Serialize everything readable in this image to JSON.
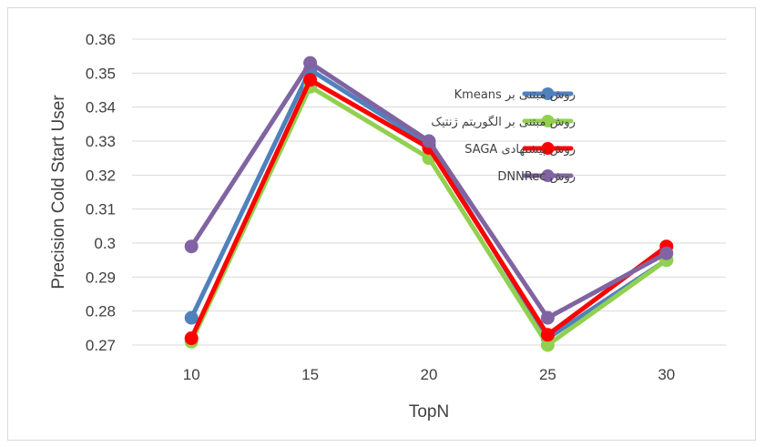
{
  "chart_data": {
    "type": "line",
    "xlabel": "TopN",
    "ylabel": "Precision Cold Start User",
    "categories": [
      "10",
      "15",
      "20",
      "25",
      "30"
    ],
    "ylim": [
      0.27,
      0.36
    ],
    "yticks": [
      "0.27",
      "0.28",
      "0.29",
      "0.3",
      "0.31",
      "0.32",
      "0.33",
      "0.34",
      "0.35",
      "0.36"
    ],
    "grid": true,
    "legend_position": "right",
    "series": [
      {
        "name": "روش مبتنی بر Kmeans",
        "color": "#4f81bd",
        "values": [
          0.278,
          0.351,
          0.329,
          0.272,
          0.295
        ]
      },
      {
        "name": "روش مبتنی بر الگوریتم ژنتیک",
        "color": "#92d050",
        "values": [
          0.271,
          0.346,
          0.325,
          0.27,
          0.295
        ]
      },
      {
        "name": "روش پیشنهادی SAGA",
        "color": "#ff0000",
        "values": [
          0.272,
          0.348,
          0.328,
          0.273,
          0.299
        ]
      },
      {
        "name": "روش DNNRec",
        "color": "#8064a2",
        "values": [
          0.299,
          0.353,
          0.33,
          0.278,
          0.297
        ]
      }
    ]
  }
}
